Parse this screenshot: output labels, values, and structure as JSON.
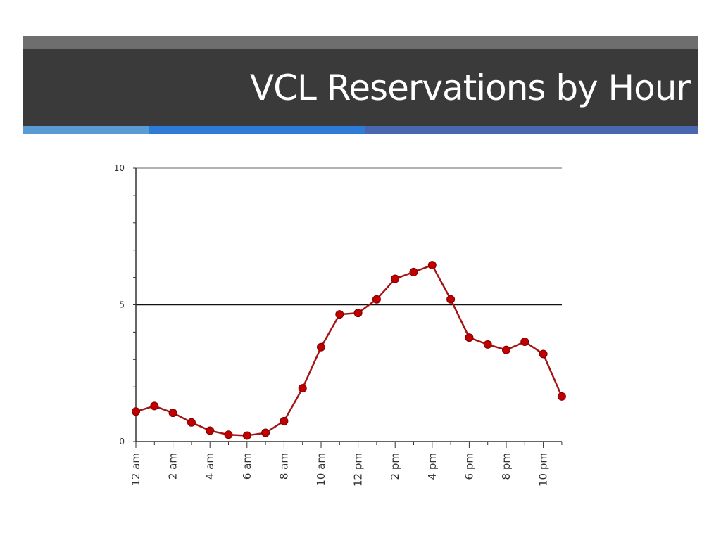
{
  "slide": {
    "title": "VCL Reservations by Hour",
    "colors": {
      "title_bar": "#3a3a3a",
      "title_bar_top": "#6e6e6e",
      "accent_1": "#5b9bd5",
      "accent_2": "#2e7cd8",
      "accent_3": "#4a66b0"
    }
  },
  "chart_data": {
    "type": "line",
    "title": "",
    "xlabel": "",
    "ylabel": "",
    "ylim": [
      0,
      10
    ],
    "yticks": [
      0,
      5,
      10
    ],
    "grid": "horizontal at 5 and 10",
    "x": [
      "12 am",
      "1 am",
      "2 am",
      "3 am",
      "4 am",
      "5 am",
      "6 am",
      "7 am",
      "8 am",
      "9 am",
      "10 am",
      "11 am",
      "12 pm",
      "1 pm",
      "2 pm",
      "3 pm",
      "4 pm",
      "5 pm",
      "6 pm",
      "7 pm",
      "8 pm",
      "9 pm",
      "10 pm",
      "11 pm"
    ],
    "xtick_labels": [
      "12 am",
      "2 am",
      "4 am",
      "6 am",
      "8 am",
      "10 am",
      "12 pm",
      "2 pm",
      "4 pm",
      "6 pm",
      "8 pm",
      "10 pm"
    ],
    "series": [
      {
        "color": "#a31515",
        "marker_color": "#c00000",
        "values": [
          1.1,
          1.3,
          1.05,
          0.7,
          0.4,
          0.25,
          0.22,
          0.32,
          0.75,
          1.95,
          3.45,
          4.65,
          4.7,
          5.2,
          5.95,
          6.2,
          6.45,
          5.2,
          3.8,
          3.55,
          3.35,
          3.65,
          3.2,
          1.65
        ]
      }
    ]
  }
}
